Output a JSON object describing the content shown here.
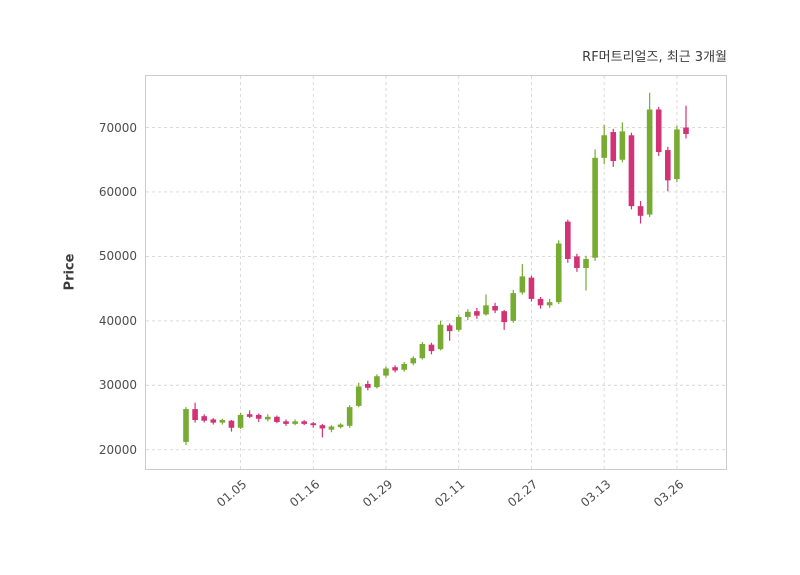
{
  "chart_data": {
    "type": "candlestick",
    "title": "RF머트리얼즈, 최근 3개월",
    "ylabel": "Price",
    "ylim": [
      17000,
      78000
    ],
    "y_ticks": [
      20000,
      30000,
      40000,
      50000,
      60000,
      70000
    ],
    "x_ticks": [
      {
        "index": 6,
        "label": "01.05"
      },
      {
        "index": 14,
        "label": "01.16"
      },
      {
        "index": 22,
        "label": "01.29"
      },
      {
        "index": 30,
        "label": "02.11"
      },
      {
        "index": 38,
        "label": "02.27"
      },
      {
        "index": 46,
        "label": "03.13"
      },
      {
        "index": 54,
        "label": "03.26"
      }
    ],
    "grid": "dashed",
    "legend": "none",
    "background": "#ffffff",
    "up_color": "#77ab31",
    "down_color": "#d23377",
    "candle_format": [
      "open",
      "high",
      "low",
      "close"
    ],
    "candles": [
      [
        21200,
        26600,
        20700,
        26300
      ],
      [
        26300,
        27300,
        24200,
        24600
      ],
      [
        25200,
        25500,
        24200,
        24500
      ],
      [
        24700,
        24900,
        23900,
        24200
      ],
      [
        24200,
        24800,
        23900,
        24600
      ],
      [
        24500,
        24600,
        22800,
        23400
      ],
      [
        23400,
        25700,
        23200,
        25400
      ],
      [
        25500,
        26100,
        24900,
        25100
      ],
      [
        25400,
        25600,
        24300,
        24800
      ],
      [
        24700,
        25500,
        24400,
        25100
      ],
      [
        25100,
        25300,
        24100,
        24300
      ],
      [
        24400,
        24700,
        23700,
        24000
      ],
      [
        24000,
        24700,
        23800,
        24400
      ],
      [
        24400,
        24600,
        23800,
        24000
      ],
      [
        24100,
        24300,
        23400,
        23800
      ],
      [
        23800,
        24000,
        21900,
        23300
      ],
      [
        23100,
        23800,
        22700,
        23600
      ],
      [
        23500,
        24100,
        23300,
        23900
      ],
      [
        23700,
        26900,
        23400,
        26600
      ],
      [
        26800,
        30400,
        26600,
        29800
      ],
      [
        30200,
        30700,
        29200,
        29600
      ],
      [
        29700,
        31700,
        29500,
        31400
      ],
      [
        31500,
        32900,
        31200,
        32600
      ],
      [
        32800,
        33100,
        32000,
        32300
      ],
      [
        32400,
        33600,
        32100,
        33300
      ],
      [
        33400,
        34500,
        33100,
        34200
      ],
      [
        34200,
        36700,
        34000,
        36400
      ],
      [
        36300,
        36600,
        34800,
        35300
      ],
      [
        35600,
        40000,
        35400,
        39400
      ],
      [
        39300,
        39600,
        36900,
        38400
      ],
      [
        38600,
        41000,
        38300,
        40600
      ],
      [
        40600,
        41800,
        40100,
        41400
      ],
      [
        41500,
        42000,
        40300,
        40800
      ],
      [
        41000,
        44100,
        40800,
        42400
      ],
      [
        42300,
        42800,
        41200,
        41600
      ],
      [
        41500,
        41700,
        38600,
        39800
      ],
      [
        40000,
        44800,
        39700,
        44300
      ],
      [
        44400,
        48800,
        44100,
        46900
      ],
      [
        46700,
        47000,
        43000,
        43400
      ],
      [
        43400,
        43700,
        41900,
        42400
      ],
      [
        42400,
        43400,
        42000,
        42900
      ],
      [
        42900,
        52500,
        42600,
        52000
      ],
      [
        55400,
        55700,
        49000,
        49600
      ],
      [
        50000,
        50400,
        47600,
        48200
      ],
      [
        48200,
        50100,
        44700,
        49600
      ],
      [
        49800,
        66600,
        49300,
        65300
      ],
      [
        65300,
        70400,
        64300,
        68800
      ],
      [
        69300,
        69800,
        63900,
        64800
      ],
      [
        65000,
        70800,
        64600,
        69400
      ],
      [
        68800,
        69200,
        57300,
        57800
      ],
      [
        57800,
        58600,
        55100,
        56300
      ],
      [
        56500,
        75400,
        56100,
        72800
      ],
      [
        72800,
        73200,
        65600,
        66200
      ],
      [
        66500,
        67000,
        60100,
        61800
      ],
      [
        62000,
        70300,
        61500,
        69700
      ],
      [
        70000,
        73400,
        68300,
        69000
      ]
    ]
  }
}
